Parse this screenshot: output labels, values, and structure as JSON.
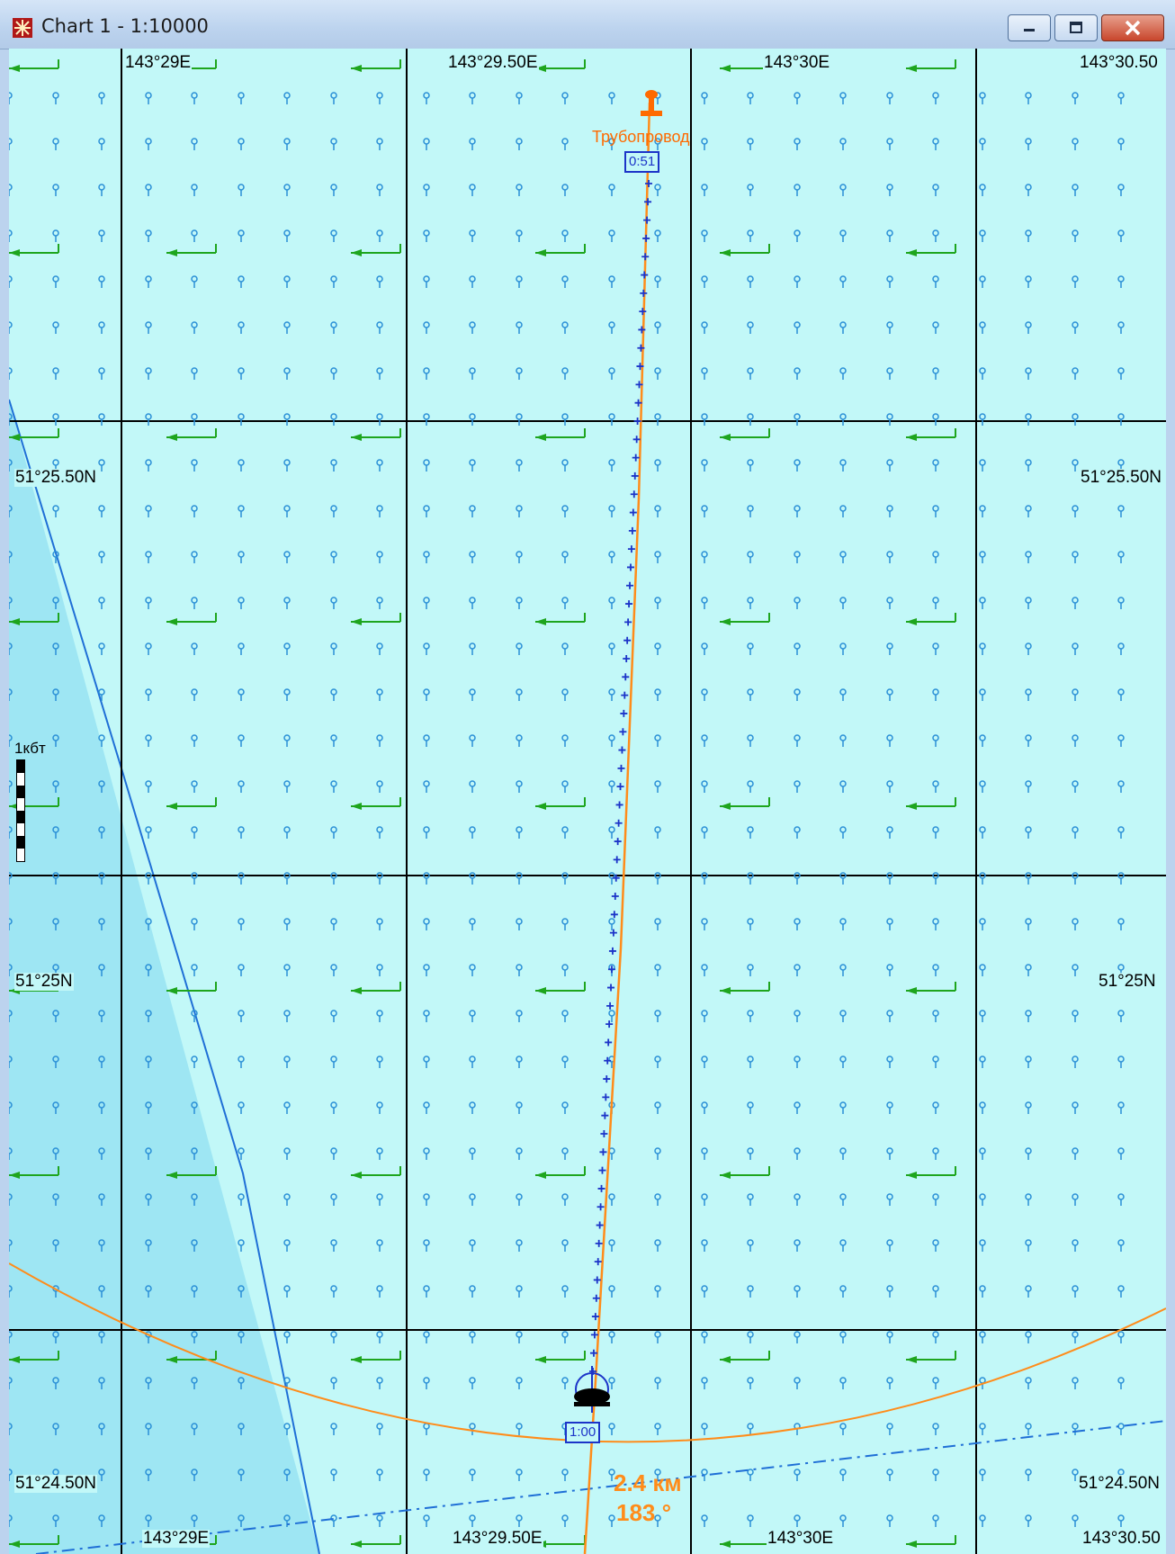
{
  "window": {
    "title": "Chart 1 - 1:10000",
    "controls": [
      "minimize",
      "maximize",
      "close"
    ]
  },
  "chart": {
    "longitude_labels_top": [
      "143°29E",
      "143°29.50E",
      "143°30E",
      "143°30.50"
    ],
    "longitude_labels_bottom": [
      "143°29E",
      "143°29.50E",
      "143°30E",
      "143°30.50"
    ],
    "latitude_labels_left": [
      "51°25.50N",
      "51°25N",
      "51°24.50N"
    ],
    "latitude_labels_right": [
      "51°25.50N",
      "51°25N",
      "51°24.50N"
    ],
    "scale_bar_label": "1кбт",
    "target_label": "Трубопровод",
    "target_time": "0:51",
    "vessel_time": "1:00",
    "distance_text": "2.4 км",
    "bearing_text": "183 °",
    "colors": {
      "water": "#c2f8f8",
      "shallow_water": "#9ee6f3",
      "grid": "#000000",
      "current_arrow": "#1ea51e",
      "depth_symbol": "#2a8fd6",
      "route": "#ff8c1a",
      "track_marks": "#1c34c8"
    },
    "icons": [
      "depth-marker-icon",
      "current-arrow-icon",
      "vessel-icon",
      "target-buoy-icon"
    ]
  }
}
